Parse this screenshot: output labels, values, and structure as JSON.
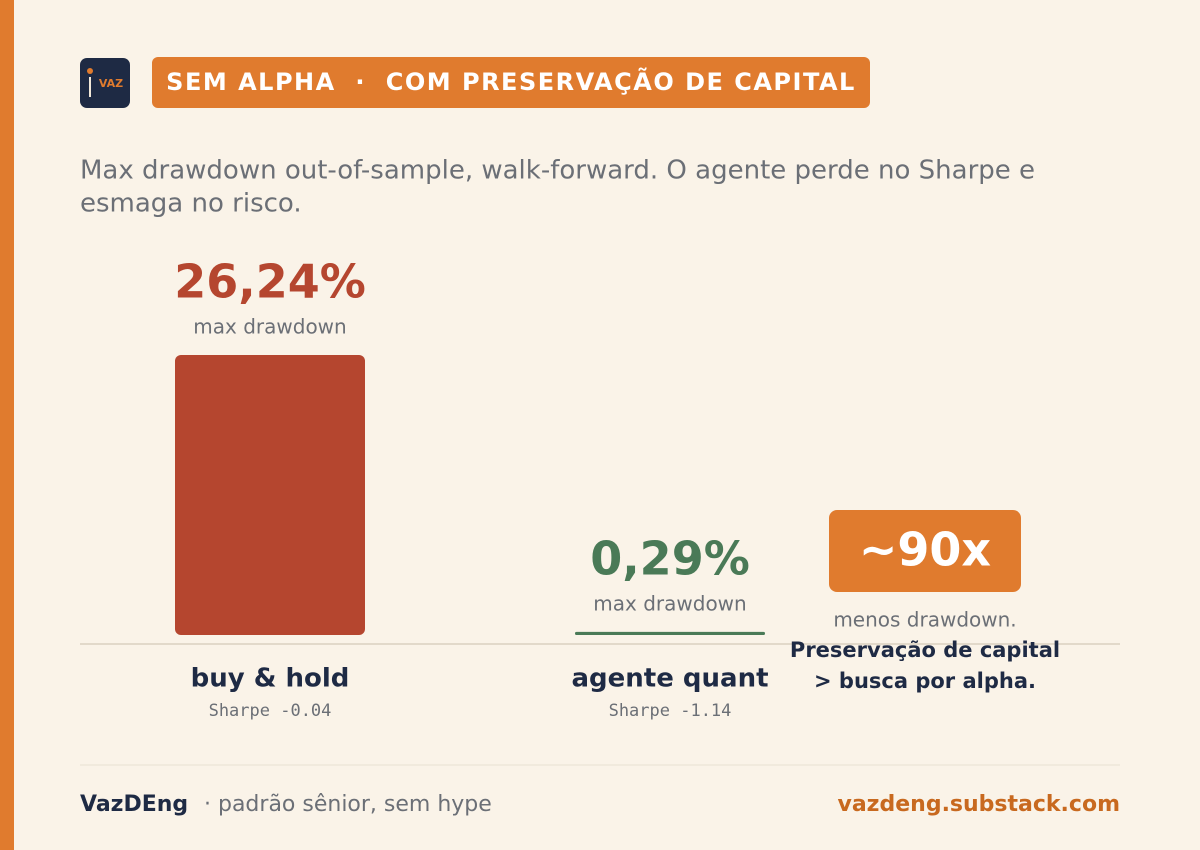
{
  "header": {
    "logo": "VAZ",
    "badge": "SEM ALPHA  ·  COM PRESERVAÇÃO DE CAPITAL"
  },
  "chart_data": {
    "type": "bar",
    "subtitle": [
      "Max drawdown out-of-sample, walk-forward. O agente perde no Sharpe e",
      "esmaga no risco."
    ],
    "categories": [
      "buy & hold",
      "agente quant"
    ],
    "category_notes": [
      "Sharpe -0.04",
      "Sharpe -1.14"
    ],
    "values": [
      26.24,
      0.29
    ],
    "value_labels": [
      "26,24%",
      "0,29%"
    ],
    "value_caption": "max drawdown",
    "colors": [
      "#b5462f",
      "#4a7a57"
    ]
  },
  "callout": {
    "value": "~90x",
    "lines": [
      "menos drawdown.",
      "Preservação de capital",
      "> busca por alpha."
    ]
  },
  "footer": {
    "name": "VazDEng",
    "tagline": "· padrão sênior, sem hype",
    "url": "vazdeng.substack.com"
  }
}
